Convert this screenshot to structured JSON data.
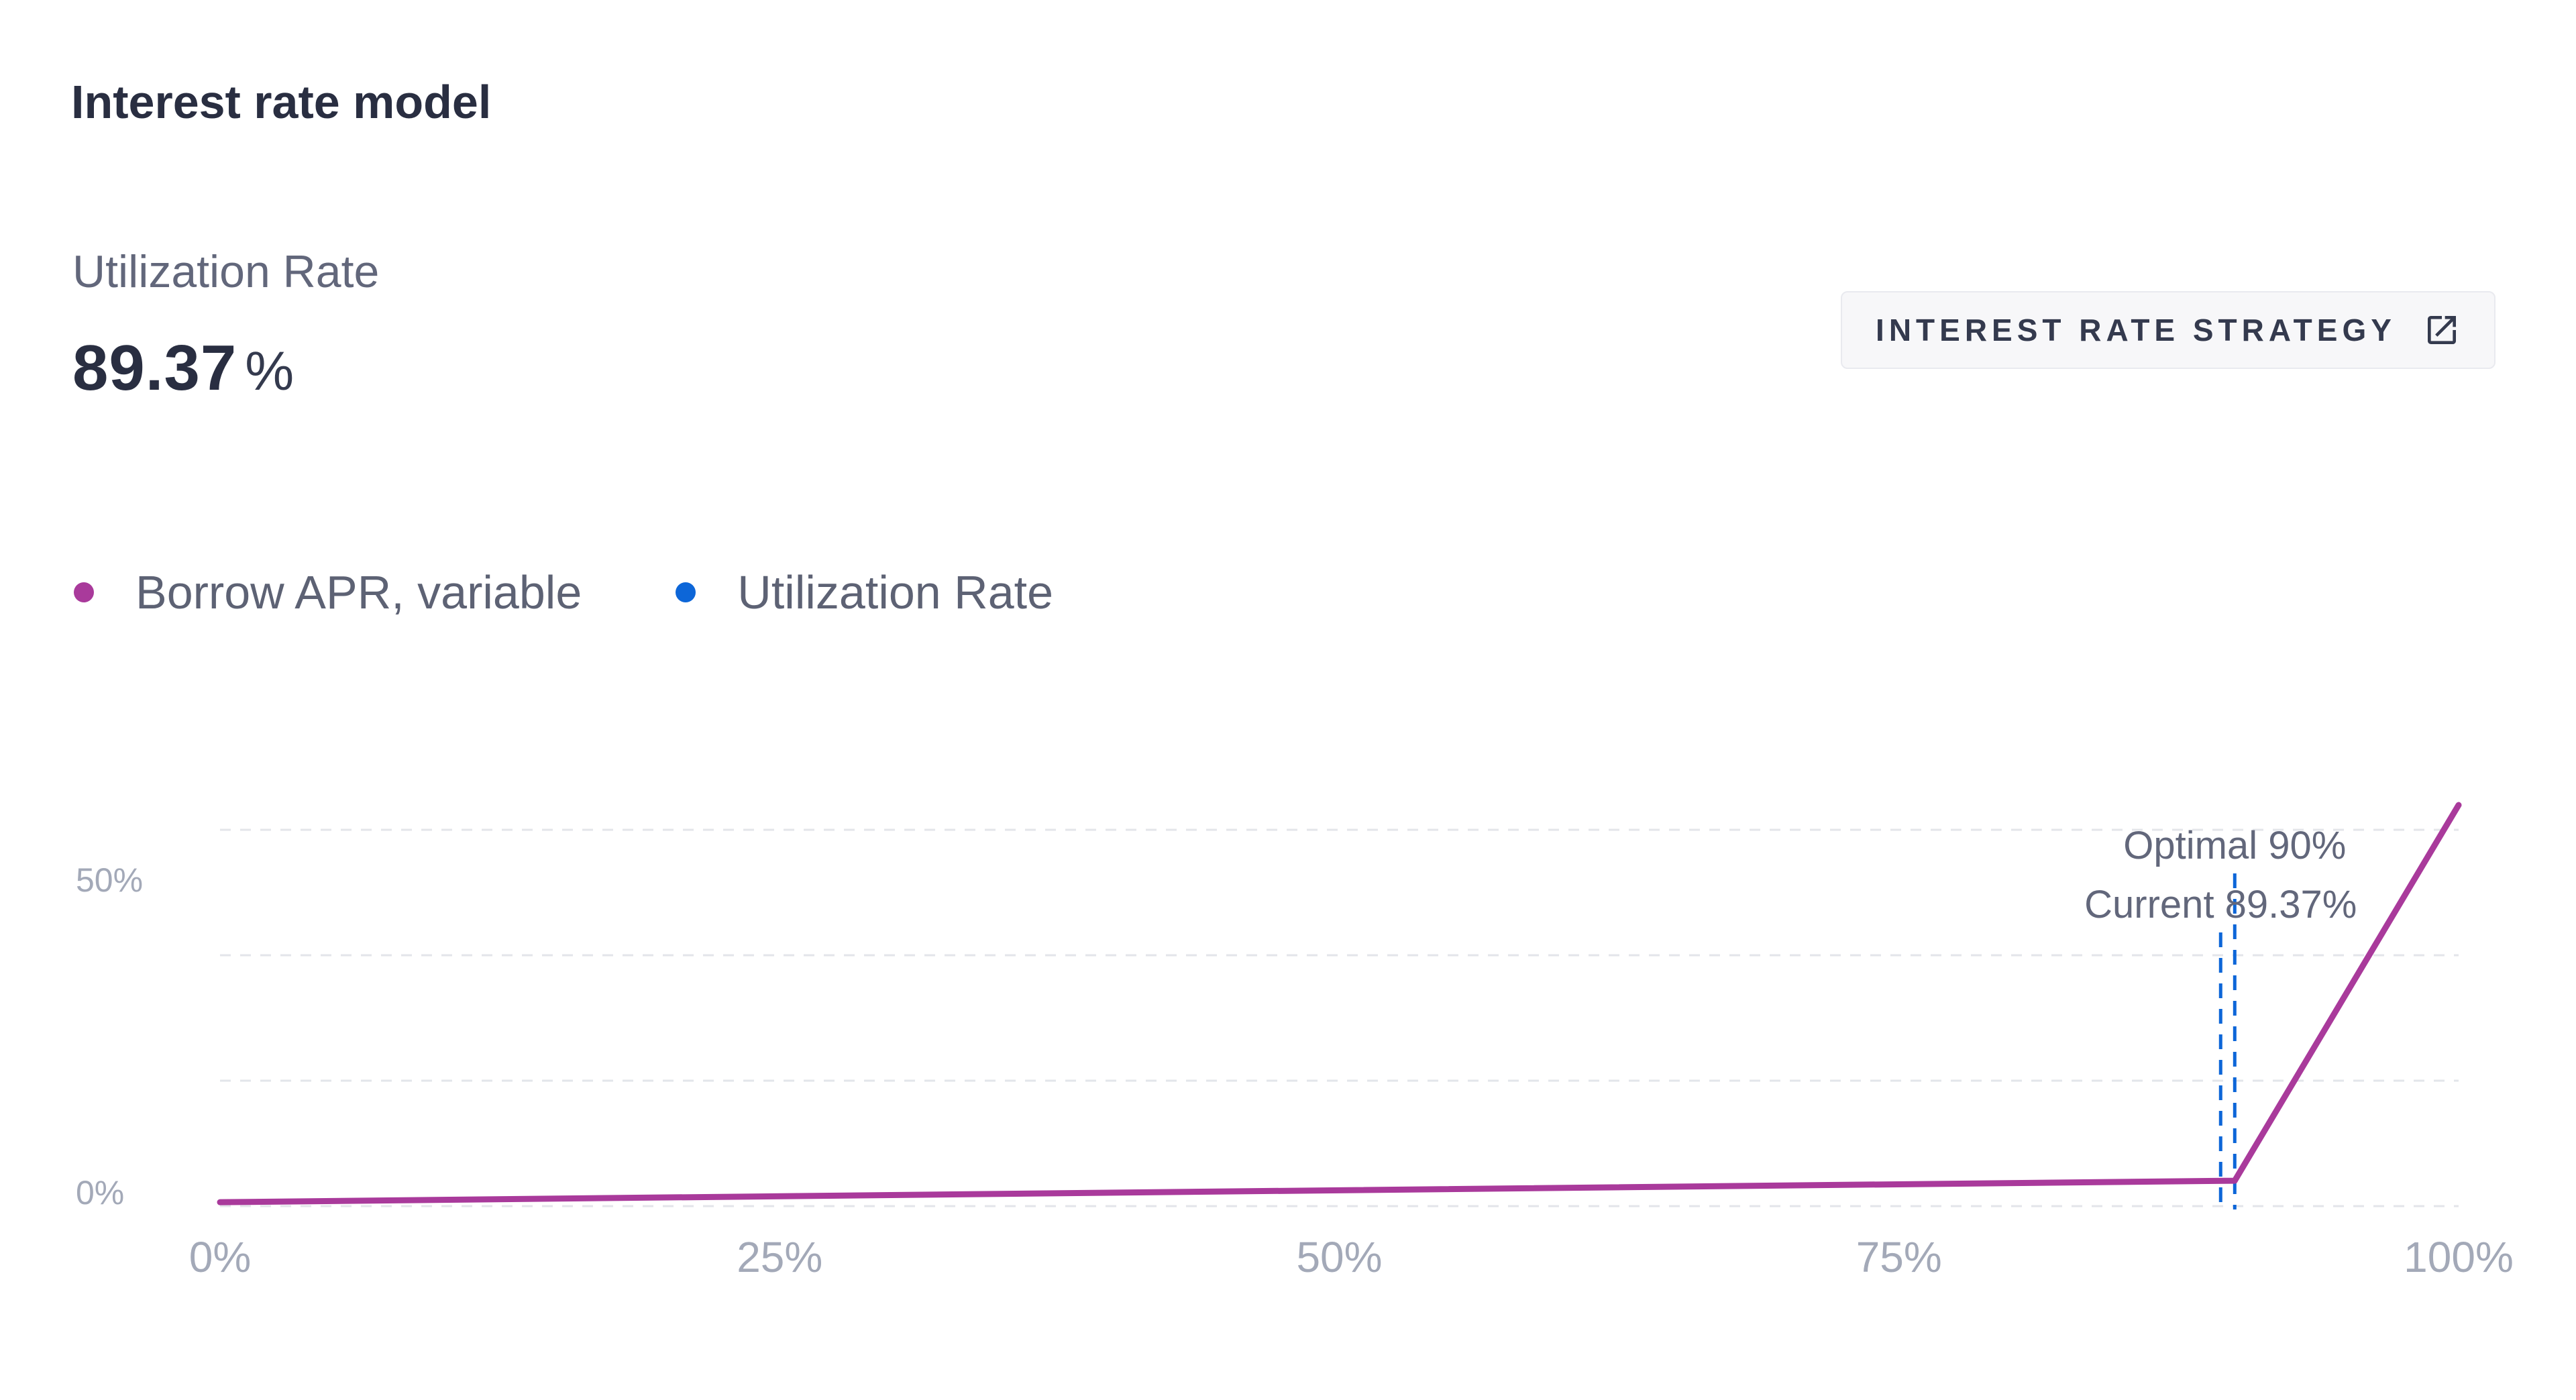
{
  "header": {
    "title": "Interest rate model"
  },
  "metric": {
    "label": "Utilization Rate",
    "value": "89.37",
    "unit": "%"
  },
  "button": {
    "label": "INTEREST RATE STRATEGY",
    "icon": "external-link-icon"
  },
  "legend": {
    "items": [
      {
        "label": "Borrow APR, variable",
        "color": "#a93a9b"
      },
      {
        "label": "Utilization Rate",
        "color": "#0d66d8"
      }
    ]
  },
  "chart_data": {
    "type": "line",
    "title": "Interest rate model",
    "xlabel": "Utilization Rate",
    "ylabel": "Borrow APR",
    "xlim": [
      0,
      100
    ],
    "ylim": [
      0,
      57.7
    ],
    "grid": "4 dashed horizontal gridlines, evenly spaced, legend top-left, no plot border",
    "x_ticks": [
      {
        "value": 0,
        "label": "0%"
      },
      {
        "value": 25,
        "label": "25%"
      },
      {
        "value": 50,
        "label": "50%"
      },
      {
        "value": 75,
        "label": "75%"
      },
      {
        "value": 100,
        "label": "100%"
      }
    ],
    "y_ticks": [
      {
        "value": 0,
        "label": "0%"
      },
      {
        "value": 50,
        "label": "50%"
      }
    ],
    "series": [
      {
        "name": "Borrow APR, variable",
        "color": "#a93a9b",
        "points": [
          [
            0,
            0.6
          ],
          [
            90,
            3.9
          ],
          [
            100,
            61.5
          ]
        ]
      }
    ],
    "markers": [
      {
        "name": "optimal-utilization",
        "label": "Optimal 90%",
        "x": 90
      },
      {
        "name": "current-utilization",
        "label": "Current 89.37%",
        "x": 89.37
      }
    ],
    "colors": {
      "marker_line": "#0d66d8",
      "grid_line": "#e3e5ea",
      "axis_label": "#a3a9b8",
      "annotation_text": "#62677b"
    }
  }
}
